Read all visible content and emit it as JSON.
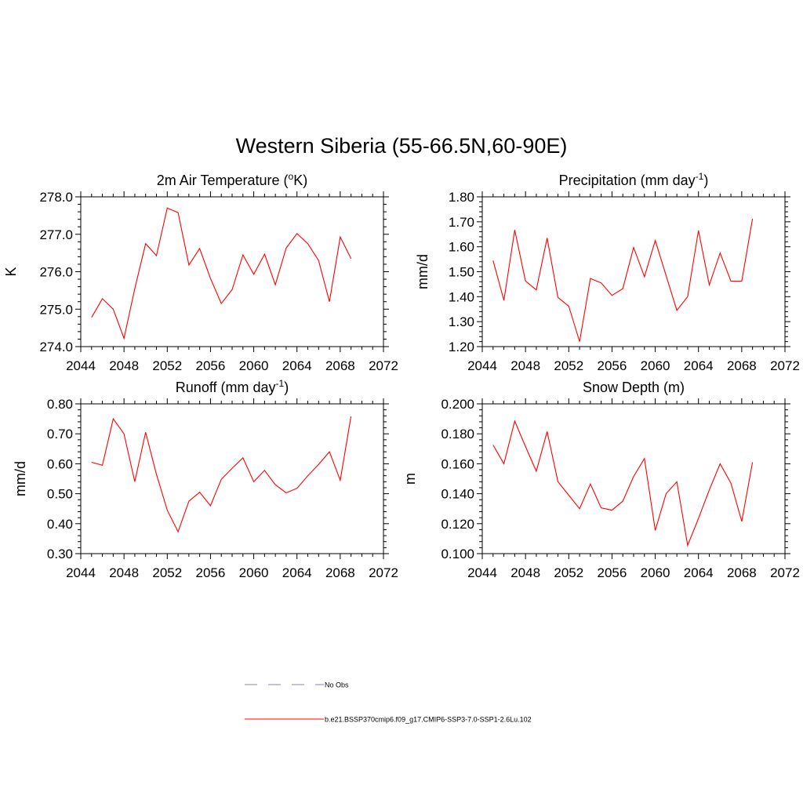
{
  "figure": {
    "title": "Western Siberia (55-66.5N,60-90E)"
  },
  "panels": {
    "temp": {
      "title_main": "2m Air Temperature (",
      "title_sup": "o",
      "title_end": "K)",
      "ylabel": "K"
    },
    "precip": {
      "title_main": "Precipitation (mm day",
      "title_sup": "-1",
      "title_end": ")",
      "ylabel": "mm/d"
    },
    "runoff": {
      "title_main": "Runoff (mm day",
      "title_sup": "-1",
      "title_end": ")",
      "ylabel": "mm/d"
    },
    "snow": {
      "title_main": "Snow Depth (m)",
      "title_sup": "",
      "title_end": "",
      "ylabel": "m"
    }
  },
  "legend": {
    "obs_label": "No Obs",
    "obs_color": "#9999dd",
    "model_label": "b.e21.BSSP370cmip6.f09_g17.CMIP6-SSP3-7.0-SSP1-2.6Lu.102",
    "model_color": "#ff0000"
  },
  "chart_data": [
    {
      "type": "line",
      "id": "temp",
      "title": "2m Air Temperature (oK)",
      "ylabel": "K",
      "xlim": [
        2044,
        2072
      ],
      "ylim": [
        274.0,
        278.0
      ],
      "xticks": [
        2044,
        2048,
        2052,
        2056,
        2060,
        2064,
        2068,
        2072
      ],
      "yticks": [
        "274.0",
        "275.0",
        "276.0",
        "277.0",
        "278.0"
      ],
      "ytick_values": [
        274.0,
        275.0,
        276.0,
        277.0,
        278.0
      ],
      "yminor_step": 0.2,
      "x": [
        2045,
        2046,
        2047,
        2048,
        2049,
        2050,
        2051,
        2052,
        2053,
        2054,
        2055,
        2056,
        2057,
        2058,
        2059,
        2060,
        2061,
        2062,
        2063,
        2064,
        2065,
        2066,
        2067,
        2068,
        2069
      ],
      "series": [
        {
          "name": "b.e21.BSSP370cmip6.f09_g17.CMIP6-SSP3-7.0-SSP1-2.6Lu.102",
          "color": "#ff0000",
          "values": [
            274.78,
            275.28,
            275.0,
            274.22,
            275.55,
            276.75,
            276.43,
            277.7,
            277.58,
            276.18,
            276.62,
            275.82,
            275.15,
            275.52,
            276.45,
            275.93,
            276.47,
            275.65,
            276.63,
            277.02,
            276.75,
            276.3,
            275.2,
            276.93,
            276.35
          ]
        }
      ]
    },
    {
      "type": "line",
      "id": "precip",
      "title": "Precipitation (mm day-1)",
      "ylabel": "mm/d",
      "xlim": [
        2044,
        2072
      ],
      "ylim": [
        1.2,
        1.8
      ],
      "xticks": [
        2044,
        2048,
        2052,
        2056,
        2060,
        2064,
        2068,
        2072
      ],
      "yticks": [
        "1.20",
        "1.30",
        "1.40",
        "1.50",
        "1.60",
        "1.70",
        "1.80"
      ],
      "ytick_values": [
        1.2,
        1.3,
        1.4,
        1.5,
        1.6,
        1.7,
        1.8
      ],
      "yminor_step": 0.02,
      "x": [
        2045,
        2046,
        2047,
        2048,
        2049,
        2050,
        2051,
        2052,
        2053,
        2054,
        2055,
        2056,
        2057,
        2058,
        2059,
        2060,
        2061,
        2062,
        2063,
        2064,
        2065,
        2066,
        2067,
        2068,
        2069
      ],
      "series": [
        {
          "name": "b.e21.BSSP370cmip6.f09_g17.CMIP6-SSP3-7.0-SSP1-2.6Lu.102",
          "color": "#ff0000",
          "values": [
            1.545,
            1.385,
            1.667,
            1.463,
            1.427,
            1.635,
            1.397,
            1.362,
            1.22,
            1.473,
            1.455,
            1.405,
            1.432,
            1.597,
            1.48,
            1.625,
            1.485,
            1.345,
            1.4,
            1.665,
            1.447,
            1.575,
            1.462,
            1.462,
            1.712
          ]
        }
      ]
    },
    {
      "type": "line",
      "id": "runoff",
      "title": "Runoff (mm day-1)",
      "ylabel": "mm/d",
      "xlim": [
        2044,
        2072
      ],
      "ylim": [
        0.3,
        0.8
      ],
      "xticks": [
        2044,
        2048,
        2052,
        2056,
        2060,
        2064,
        2068,
        2072
      ],
      "yticks": [
        "0.30",
        "0.40",
        "0.50",
        "0.60",
        "0.70",
        "0.80"
      ],
      "ytick_values": [
        0.3,
        0.4,
        0.5,
        0.6,
        0.7,
        0.8
      ],
      "yminor_step": 0.02,
      "x": [
        2045,
        2046,
        2047,
        2048,
        2049,
        2050,
        2051,
        2052,
        2053,
        2054,
        2055,
        2056,
        2057,
        2058,
        2059,
        2060,
        2061,
        2062,
        2063,
        2064,
        2065,
        2066,
        2067,
        2068,
        2069
      ],
      "series": [
        {
          "name": "b.e21.BSSP370cmip6.f09_g17.CMIP6-SSP3-7.0-SSP1-2.6Lu.102",
          "color": "#ff0000",
          "values": [
            0.605,
            0.595,
            0.75,
            0.7,
            0.54,
            0.705,
            0.565,
            0.445,
            0.373,
            0.475,
            0.505,
            0.46,
            0.548,
            0.585,
            0.62,
            0.54,
            0.578,
            0.53,
            0.503,
            0.518,
            0.56,
            0.598,
            0.64,
            0.545,
            0.758
          ]
        }
      ]
    },
    {
      "type": "line",
      "id": "snow",
      "title": "Snow Depth (m)",
      "ylabel": "m",
      "xlim": [
        2044,
        2072
      ],
      "ylim": [
        0.1,
        0.2
      ],
      "xticks": [
        2044,
        2048,
        2052,
        2056,
        2060,
        2064,
        2068,
        2072
      ],
      "yticks": [
        "0.100",
        "0.120",
        "0.140",
        "0.160",
        "0.180",
        "0.200"
      ],
      "ytick_values": [
        0.1,
        0.12,
        0.14,
        0.16,
        0.18,
        0.2
      ],
      "yminor_step": 0.004,
      "x": [
        2045,
        2046,
        2047,
        2048,
        2049,
        2050,
        2051,
        2052,
        2053,
        2054,
        2055,
        2056,
        2057,
        2058,
        2059,
        2060,
        2061,
        2062,
        2063,
        2064,
        2065,
        2066,
        2067,
        2068,
        2069
      ],
      "series": [
        {
          "name": "b.e21.BSSP370cmip6.f09_g17.CMIP6-SSP3-7.0-SSP1-2.6Lu.102",
          "color": "#ff0000",
          "values": [
            0.1725,
            0.16,
            0.1885,
            0.1715,
            0.155,
            0.1815,
            0.148,
            0.139,
            0.13,
            0.1465,
            0.1305,
            0.129,
            0.135,
            0.1515,
            0.1635,
            0.1155,
            0.14,
            0.148,
            0.1055,
            0.1235,
            0.1425,
            0.16,
            0.147,
            0.1215,
            0.161
          ]
        }
      ]
    }
  ]
}
